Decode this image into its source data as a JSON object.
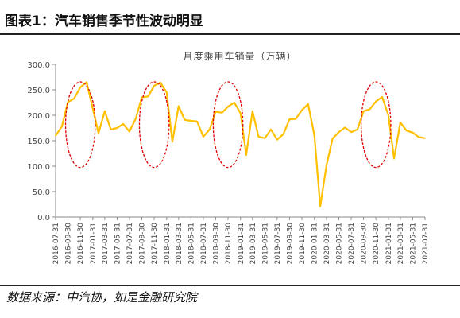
{
  "figure_title": "图表1：汽车销售季节性波动明显",
  "source_note": "数据来源：中汽协，如是金融研究院",
  "colors": {
    "line": "#FFC000",
    "highlight": "#E00000",
    "axis": "#888888",
    "text": "#444444"
  },
  "chart_data": {
    "type": "line",
    "title": "月度乘用车销量（万辆）",
    "xlabel": "",
    "ylabel": "",
    "ylim": [
      0,
      300
    ],
    "yticks": [
      "0.0",
      "50.0",
      "100.0",
      "150.0",
      "200.0",
      "250.0",
      "300.0"
    ],
    "grid": false,
    "legend": "none",
    "x_tick_labels": [
      "2016-07-31",
      "2016-09-30",
      "2016-11-30",
      "2017-01-31",
      "2017-03-31",
      "2017-05-31",
      "2017-07-31",
      "2017-09-30",
      "2017-11-30",
      "2018-01-31",
      "2018-03-31",
      "2018-05-31",
      "2018-07-31",
      "2018-09-30",
      "2018-11-30",
      "2019-01-31",
      "2019-03-31",
      "2019-05-31",
      "2019-07-31",
      "2019-09-30",
      "2019-11-30",
      "2020-01-31",
      "2020-03-31",
      "2020-05-31",
      "2020-07-31",
      "2020-09-30",
      "2020-11-30",
      "2021-01-31",
      "2021-03-31",
      "2021-05-31",
      "2021-07-31"
    ],
    "x": [
      "2016-07-31",
      "2016-08-31",
      "2016-09-30",
      "2016-10-31",
      "2016-11-30",
      "2016-12-31",
      "2017-01-31",
      "2017-02-28",
      "2017-03-31",
      "2017-04-30",
      "2017-05-31",
      "2017-06-30",
      "2017-07-31",
      "2017-08-31",
      "2017-09-30",
      "2017-10-31",
      "2017-11-30",
      "2017-12-31",
      "2018-01-31",
      "2018-02-28",
      "2018-03-31",
      "2018-04-30",
      "2018-05-31",
      "2018-06-30",
      "2018-07-31",
      "2018-08-31",
      "2018-09-30",
      "2018-10-31",
      "2018-11-30",
      "2018-12-31",
      "2019-01-31",
      "2019-02-28",
      "2019-03-31",
      "2019-04-30",
      "2019-05-31",
      "2019-06-30",
      "2019-07-31",
      "2019-08-31",
      "2019-09-30",
      "2019-10-31",
      "2019-11-30",
      "2019-12-31",
      "2020-01-31",
      "2020-02-29",
      "2020-03-31",
      "2020-04-30",
      "2020-05-31",
      "2020-06-30",
      "2020-07-31",
      "2020-08-31",
      "2020-09-30",
      "2020-10-31",
      "2020-11-30",
      "2020-12-31",
      "2021-01-31",
      "2021-02-28",
      "2021-03-31",
      "2021-04-30",
      "2021-05-31",
      "2021-06-30",
      "2021-07-31"
    ],
    "series": [
      {
        "values": [
          160,
          178,
          226,
          233,
          255,
          265,
          212,
          165,
          208,
          172,
          175,
          183,
          168,
          193,
          235,
          237,
          258,
          264,
          245,
          148,
          218,
          191,
          189,
          188,
          158,
          172,
          207,
          205,
          217,
          225,
          204,
          122,
          208,
          158,
          155,
          172,
          152,
          163,
          192,
          193,
          210,
          222,
          161,
          21,
          102,
          154,
          167,
          176,
          167,
          172,
          208,
          212,
          227,
          236,
          200,
          115,
          186,
          170,
          166,
          157,
          155
        ]
      }
    ],
    "highlighted_periods": [
      [
        "2016-09-30",
        "2017-01-31"
      ],
      [
        "2017-09-30",
        "2018-01-31"
      ],
      [
        "2018-09-30",
        "2019-01-31"
      ],
      [
        "2020-09-30",
        "2021-01-31"
      ]
    ]
  }
}
